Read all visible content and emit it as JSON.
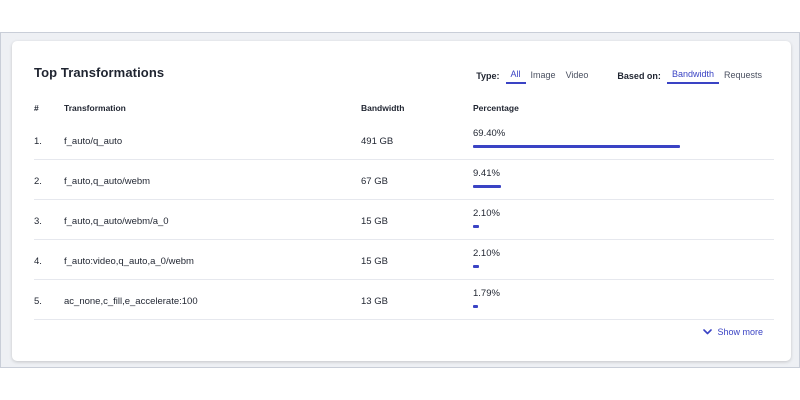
{
  "title": "Top Transformations",
  "filters": {
    "type_label": "Type:",
    "type_options": [
      "All",
      "Image",
      "Video"
    ],
    "type_selected": "All",
    "based_label": "Based on:",
    "based_options": [
      "Bandwidth",
      "Requests"
    ],
    "based_selected": "Bandwidth"
  },
  "table": {
    "headers": [
      "#",
      "Transformation",
      "Bandwidth",
      "Percentage"
    ],
    "rows": [
      {
        "num": "1.",
        "name": "f_auto/q_auto",
        "bandwidth": "491 GB",
        "percentage": "69.40%",
        "fraction": 0.694
      },
      {
        "num": "2.",
        "name": "f_auto,q_auto/webm",
        "bandwidth": "67 GB",
        "percentage": "9.41%",
        "fraction": 0.0941
      },
      {
        "num": "3.",
        "name": "f_auto,q_auto/webm/a_0",
        "bandwidth": "15 GB",
        "percentage": "2.10%",
        "fraction": 0.021
      },
      {
        "num": "4.",
        "name": "f_auto:video,q_auto,a_0/webm",
        "bandwidth": "15 GB",
        "percentage": "2.10%",
        "fraction": 0.021
      },
      {
        "num": "5.",
        "name": "ac_none,c_fill,e_accelerate:100",
        "bandwidth": "13 GB",
        "percentage": "1.79%",
        "fraction": 0.0179
      }
    ]
  },
  "show_more": {
    "label": "Show more",
    "icon": "chevron-down-icon"
  },
  "colors": {
    "accent": "#3a43c4"
  }
}
